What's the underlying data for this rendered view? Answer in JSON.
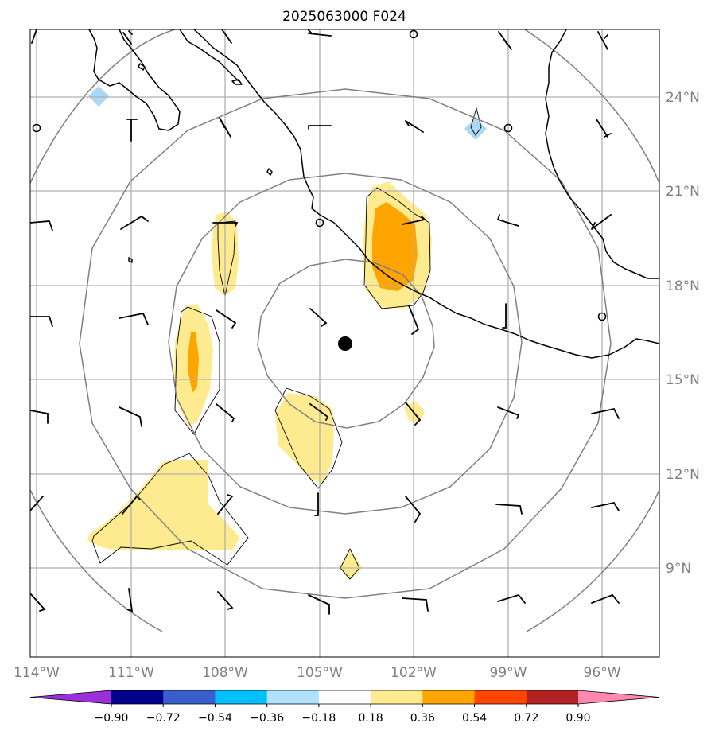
{
  "map": {
    "title": "2025063000 F024",
    "center_marker": {
      "lon": -104.1,
      "lat": 16.2
    },
    "lon_ticks": [
      "114°W",
      "111°W",
      "108°W",
      "105°W",
      "102°W",
      "99°W",
      "96°W"
    ],
    "lat_ticks": [
      "24°N",
      "21°N",
      "18°N",
      "15°N",
      "12°N",
      "9°N"
    ],
    "range_rings": 4,
    "fill_colors": {
      "light_yellow": "#ffeb8f",
      "orange": "#ffa500",
      "light_blue": "#add8f5"
    },
    "features": [
      {
        "name": "Baja California coastline",
        "type": "coast"
      },
      {
        "name": "Mexico Pacific coastline",
        "type": "coast"
      },
      {
        "name": "Gulf of Mexico coastline",
        "type": "coast"
      }
    ]
  },
  "colorbar": {
    "labels": [
      "−0.90",
      "−0.72",
      "−0.54",
      "−0.36",
      "−0.18",
      "0.18",
      "0.36",
      "0.54",
      "0.72",
      "0.90"
    ],
    "colors": [
      "#9b30d9",
      "#00008b",
      "#3a5fcd",
      "#00bfff",
      "#b0e2ff",
      "#ffffff",
      "#ffeb8f",
      "#ffa500",
      "#ff4500",
      "#b22222",
      "#ff88b0"
    ]
  }
}
